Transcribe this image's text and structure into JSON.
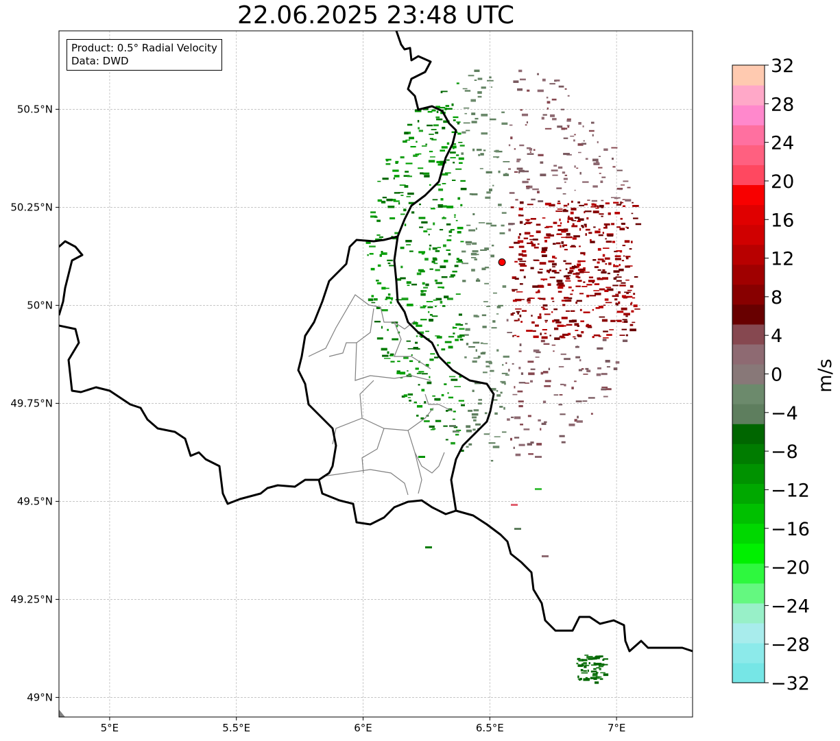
{
  "title": "22.06.2025 23:48 UTC",
  "info_box": {
    "product": "Product: 0.5° Radial Velocity",
    "data_source": "Data: DWD"
  },
  "map": {
    "lon_range": [
      4.8,
      7.3
    ],
    "lat_range": [
      48.95,
      50.7
    ],
    "x_ticks": [
      {
        "value": 5.0,
        "label": "5°E"
      },
      {
        "value": 5.5,
        "label": "5.5°E"
      },
      {
        "value": 6.0,
        "label": "6°E"
      },
      {
        "value": 6.5,
        "label": "6.5°E"
      },
      {
        "value": 7.0,
        "label": "7°E"
      }
    ],
    "y_ticks": [
      {
        "value": 50.5,
        "label": "50.5°N"
      },
      {
        "value": 50.25,
        "label": "50.25°N"
      },
      {
        "value": 50.0,
        "label": "50°N"
      },
      {
        "value": 49.75,
        "label": "49.75°N"
      },
      {
        "value": 49.5,
        "label": "49.5°N"
      },
      {
        "value": 49.25,
        "label": "49.25°N"
      },
      {
        "value": 49.0,
        "label": "49°N"
      }
    ],
    "grid": true,
    "radar_site": {
      "lon": 6.548,
      "lat": 50.11,
      "color": "#ff0000"
    }
  },
  "colorbar": {
    "unit": "m/s",
    "min": -32,
    "max": 32,
    "tick_labels": [
      "32",
      "28",
      "24",
      "20",
      "16",
      "12",
      "8",
      "4",
      "0",
      "−4",
      "−8",
      "−12",
      "−16",
      "−20",
      "−24",
      "−28",
      "−32"
    ],
    "colors": [
      "#76e6e6",
      "#8ceaea",
      "#a8ecec",
      "#98f0c8",
      "#64f880",
      "#2ef83e",
      "#00f000",
      "#00d800",
      "#00c000",
      "#00a800",
      "#009200",
      "#007c00",
      "#006600",
      "#5e7e5e",
      "#6c8a6c",
      "#887878",
      "#8e6a72",
      "#864850",
      "#680000",
      "#880000",
      "#a00000",
      "#b80000",
      "#d00000",
      "#e00000",
      "#f80000",
      "#ff4860",
      "#ff6080",
      "#ff70a0",
      "#ff88cc",
      "#ffa8c8",
      "#ffcab0"
    ]
  }
}
